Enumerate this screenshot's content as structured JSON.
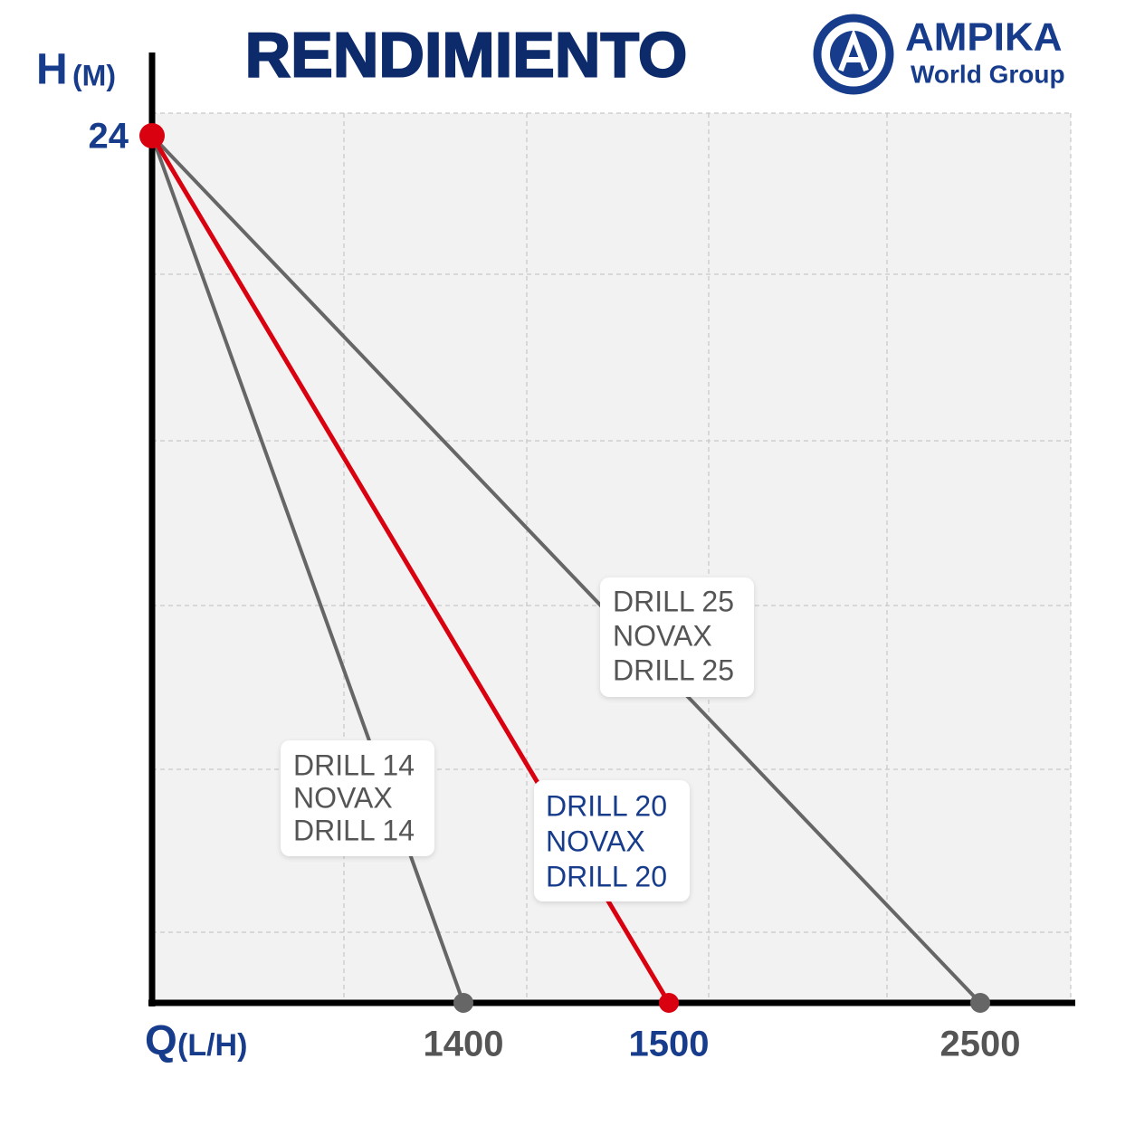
{
  "header": {
    "title": "RENDIMIENTO",
    "logo": {
      "name": "AMPIKA",
      "tagline": "World Group"
    }
  },
  "y_axis": {
    "label": "H",
    "unit": "(M)",
    "max": "24"
  },
  "x_axis": {
    "label": "Q",
    "unit": "(L/H)",
    "ends": [
      "1400",
      "1500",
      "2500"
    ]
  },
  "curves": [
    {
      "lines": [
        "DRILL 14",
        "NOVAX",
        "DRILL 14"
      ]
    },
    {
      "lines": [
        "DRILL 20",
        "NOVAX",
        "DRILL 20"
      ]
    },
    {
      "lines": [
        "DRILL 25",
        "NOVAX",
        "DRILL 25"
      ]
    }
  ]
}
